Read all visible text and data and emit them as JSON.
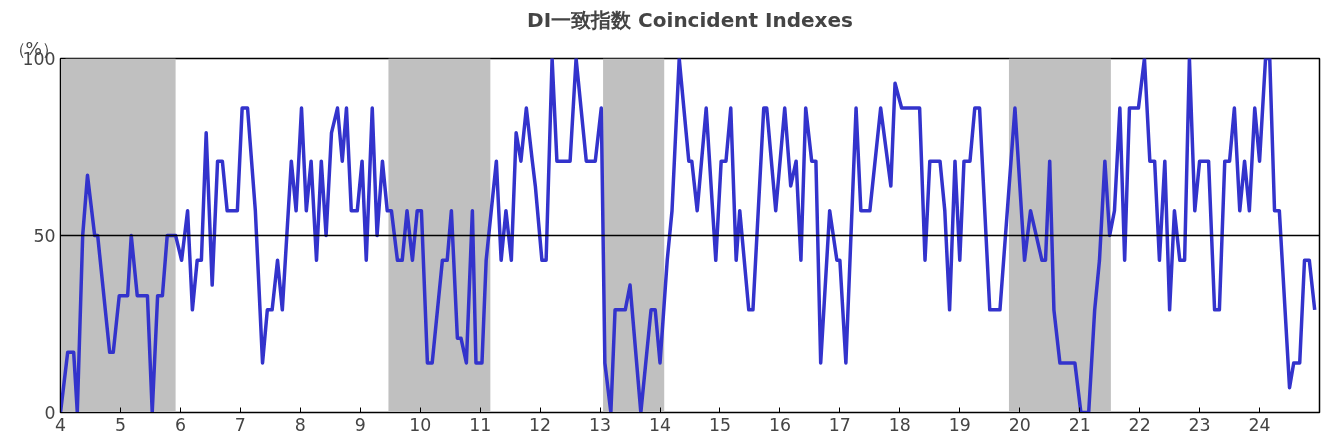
{
  "chart_data": {
    "type": "line",
    "title": "DI一致指数 Coincident Indexes",
    "ylabel": "（%）",
    "xlim": [
      4,
      25
    ],
    "ylim": [
      0,
      100
    ],
    "xticks": [
      4,
      5,
      6,
      7,
      8,
      9,
      10,
      11,
      12,
      13,
      14,
      15,
      16,
      17,
      18,
      19,
      20,
      21,
      22,
      23,
      24
    ],
    "yticks": [
      0,
      50,
      100
    ],
    "grid": false,
    "marker": "none",
    "line_style": "solid",
    "ref_lines": [
      {
        "axis": "y",
        "value": 50,
        "color": "#000000"
      }
    ],
    "bands": [
      {
        "axis": "x",
        "from": 4.0,
        "to": 5.92,
        "color": "#c0c0c0"
      },
      {
        "axis": "x",
        "from": 9.47,
        "to": 11.17,
        "color": "#c0c0c0"
      },
      {
        "axis": "x",
        "from": 13.05,
        "to": 14.07,
        "color": "#c0c0c0"
      },
      {
        "axis": "x",
        "from": 19.82,
        "to": 21.52,
        "color": "#c0c0c0"
      }
    ],
    "series": [
      {
        "color": "#3333cc",
        "x": [
          4.0,
          4.12,
          4.22,
          4.28,
          4.37,
          4.45,
          4.57,
          4.62,
          4.82,
          4.88,
          4.98,
          5.12,
          5.18,
          5.28,
          5.45,
          5.53,
          5.62,
          5.7,
          5.78,
          5.92,
          6.02,
          6.12,
          6.2,
          6.28,
          6.35,
          6.43,
          6.53,
          6.62,
          6.7,
          6.78,
          6.95,
          7.03,
          7.12,
          7.25,
          7.37,
          7.45,
          7.53,
          7.62,
          7.7,
          7.85,
          7.93,
          8.02,
          8.1,
          8.18,
          8.27,
          8.35,
          8.43,
          8.52,
          8.62,
          8.7,
          8.77,
          8.85,
          8.95,
          9.03,
          9.1,
          9.2,
          9.28,
          9.37,
          9.45,
          9.52,
          9.62,
          9.7,
          9.78,
          9.87,
          9.95,
          10.02,
          10.12,
          10.2,
          10.37,
          10.45,
          10.52,
          10.62,
          10.68,
          10.77,
          10.87,
          10.93,
          11.03,
          11.1,
          11.27,
          11.35,
          11.43,
          11.52,
          11.6,
          11.68,
          11.77,
          11.87,
          11.92,
          12.03,
          12.1,
          12.2,
          12.28,
          12.5,
          12.6,
          12.77,
          12.92,
          13.02,
          13.08,
          13.18,
          13.25,
          13.42,
          13.5,
          13.68,
          13.85,
          13.92,
          14.0,
          14.12,
          14.2,
          14.32,
          14.48,
          14.53,
          14.62,
          14.77,
          14.93,
          15.02,
          15.1,
          15.18,
          15.27,
          15.33,
          15.48,
          15.55,
          15.73,
          15.78,
          15.93,
          16.08,
          16.18,
          16.27,
          16.35,
          16.43,
          16.53,
          16.6,
          16.68,
          16.83,
          16.95,
          17.0,
          17.1,
          17.27,
          17.35,
          17.5,
          17.68,
          17.85,
          17.92,
          18.03,
          18.33,
          18.42,
          18.5,
          18.67,
          18.75,
          18.83,
          18.92,
          19.0,
          19.07,
          19.17,
          19.25,
          19.33,
          19.5,
          19.67,
          19.92,
          20.08,
          20.18,
          20.37,
          20.43,
          20.5,
          20.57,
          20.67,
          20.92,
          21.02,
          21.15,
          21.25,
          21.33,
          21.42,
          21.5,
          21.58,
          21.67,
          21.75,
          21.83,
          21.98,
          22.08,
          22.17,
          22.25,
          22.33,
          22.42,
          22.5,
          22.58,
          22.67,
          22.75,
          22.83,
          22.92,
          23.0,
          23.15,
          23.25,
          23.33,
          23.42,
          23.5,
          23.58,
          23.67,
          23.75,
          23.83,
          23.92,
          24.0,
          24.1,
          24.17,
          24.25,
          24.33,
          24.5,
          24.57,
          24.67,
          24.75,
          24.83,
          24.92
        ],
        "values": [
          0,
          17,
          17,
          0,
          50,
          67,
          50,
          50,
          17,
          17,
          33,
          33,
          50,
          33,
          33,
          0,
          33,
          33,
          50,
          50,
          43,
          57,
          29,
          43,
          43,
          79,
          36,
          71,
          71,
          57,
          57,
          86,
          86,
          57,
          14,
          29,
          29,
          43,
          29,
          71,
          57,
          86,
          57,
          71,
          43,
          71,
          50,
          79,
          86,
          71,
          86,
          57,
          57,
          71,
          43,
          86,
          50,
          71,
          57,
          57,
          43,
          43,
          57,
          43,
          57,
          57,
          14,
          14,
          43,
          43,
          57,
          21,
          21,
          14,
          57,
          14,
          14,
          43,
          71,
          43,
          57,
          43,
          79,
          71,
          86,
          71,
          64,
          43,
          43,
          100,
          71,
          71,
          100,
          71,
          71,
          86,
          14,
          0,
          29,
          29,
          36,
          0,
          29,
          29,
          14,
          43,
          57,
          100,
          71,
          71,
          57,
          86,
          43,
          71,
          71,
          86,
          43,
          57,
          29,
          29,
          86,
          86,
          57,
          86,
          64,
          71,
          43,
          86,
          71,
          71,
          14,
          57,
          43,
          43,
          14,
          86,
          57,
          57,
          86,
          64,
          93,
          86,
          86,
          43,
          71,
          71,
          57,
          29,
          71,
          43,
          71,
          71,
          86,
          86,
          29,
          29,
          86,
          43,
          57,
          43,
          43,
          71,
          29,
          14,
          14,
          0,
          0,
          29,
          43,
          71,
          50,
          57,
          86,
          43,
          86,
          86,
          100,
          71,
          71,
          43,
          71,
          29,
          57,
          43,
          43,
          100,
          57,
          71,
          71,
          29,
          29,
          71,
          71,
          86,
          57,
          71,
          57,
          86,
          71,
          100,
          100,
          57,
          57,
          7,
          14,
          14,
          43,
          43,
          29
        ]
      }
    ]
  }
}
